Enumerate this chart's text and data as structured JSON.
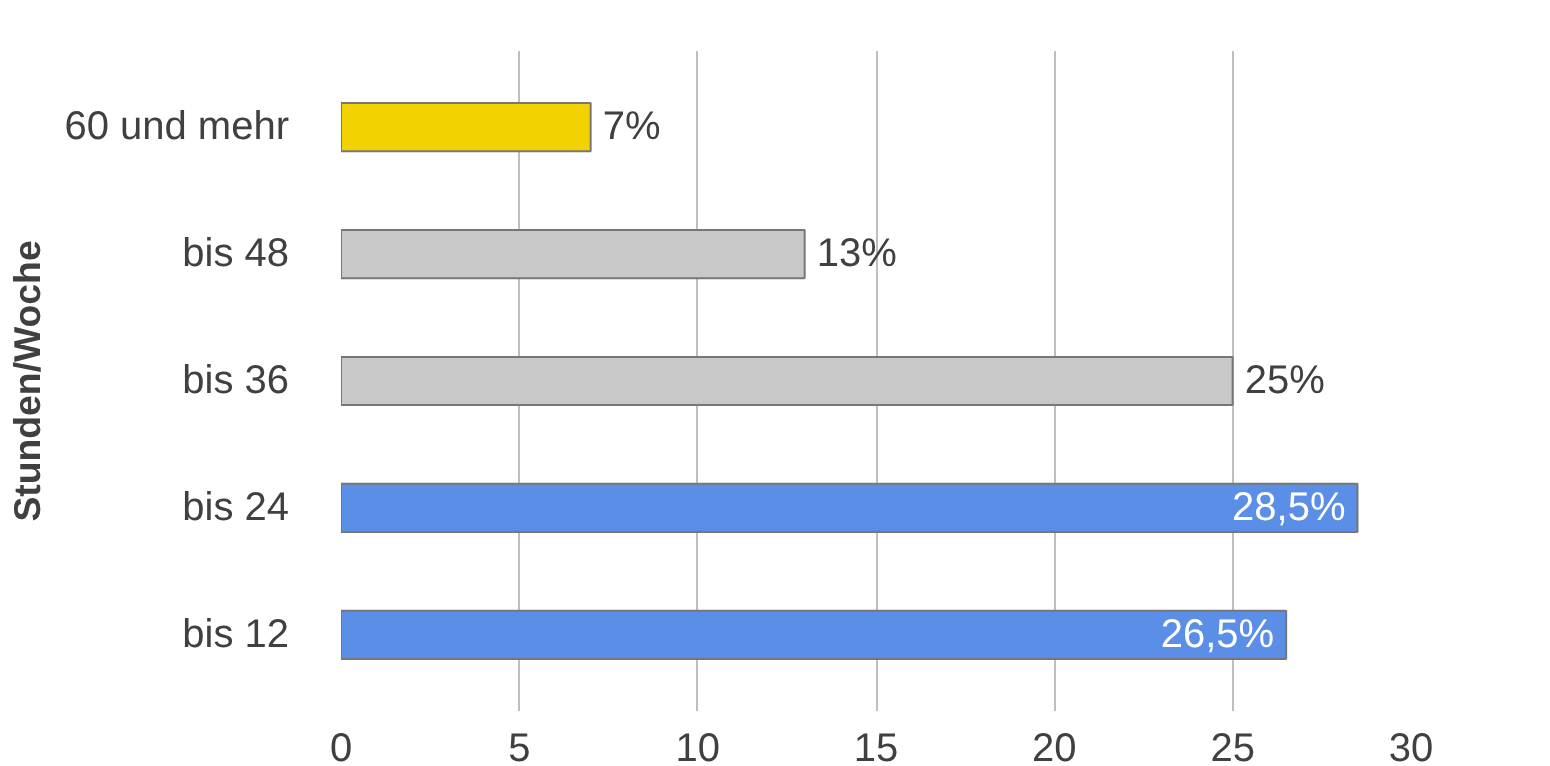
{
  "chart_data": {
    "type": "bar",
    "orientation": "horizontal",
    "ylabel": "Stunden/Woche",
    "categories": [
      "60 und mehr",
      "bis 48",
      "bis 36",
      "bis 24",
      "bis 12"
    ],
    "values": [
      7,
      13,
      25,
      28.5,
      26.5
    ],
    "colors": [
      "#f2d200",
      "#c8c8c8",
      "#c8c8c8",
      "#5b8ee6",
      "#5b8ee6"
    ],
    "value_labels": [
      "7%",
      "13%",
      "25%",
      "28,5%",
      "26,5%"
    ],
    "xlim": [
      0,
      30
    ],
    "xticks": [
      0,
      5,
      10,
      15,
      20,
      25,
      30
    ],
    "grid": "x"
  }
}
